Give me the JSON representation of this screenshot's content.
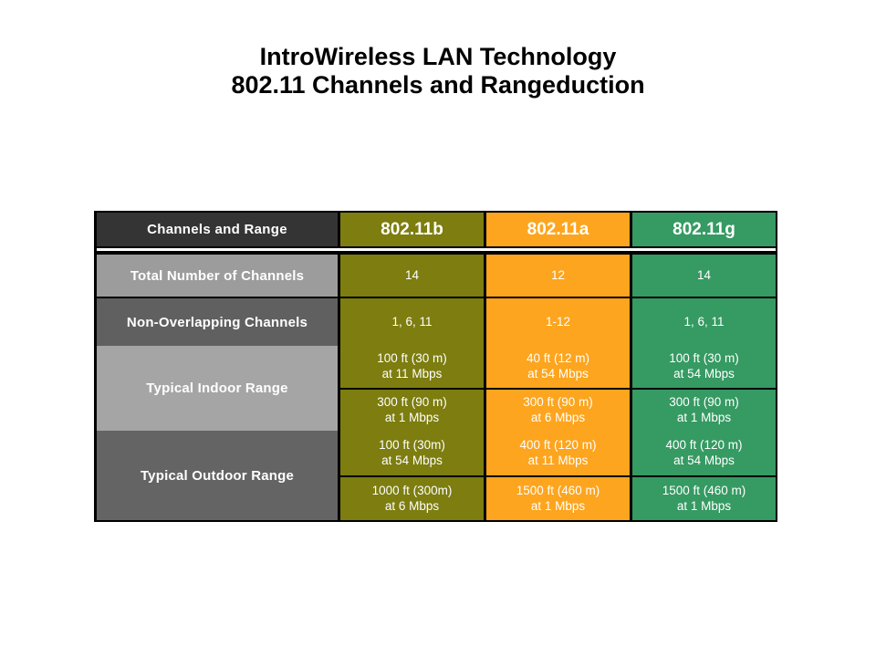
{
  "slide": {
    "title_line1": "IntroWireless LAN Technology",
    "title_line2": "802.11 Channels and Rangeduction"
  },
  "table": {
    "corner_header": "Channels and Range",
    "column_headers": [
      "802.11b",
      "802.11a",
      "802.11g"
    ],
    "row_labels": [
      "Total Number of Channels",
      "Non-Overlapping Channels",
      "Typical Indoor Range",
      "Typical Outdoor Range"
    ],
    "cells": {
      "b": [
        "14",
        "1, 6, 11",
        "100 ft (30 m)\nat 11 Mbps",
        "300 ft (90 m)\nat 1 Mbps",
        "100 ft (30m)\nat 54 Mbps",
        "1000 ft (300m)\nat 6 Mbps"
      ],
      "a": [
        "12",
        "1-12",
        "40 ft (12 m)\nat 54 Mbps",
        "300 ft (90 m)\nat 6 Mbps",
        "400 ft (120 m)\nat 11 Mbps",
        "1500 ft (460 m)\nat 1 Mbps"
      ],
      "g": [
        "14",
        "1, 6, 11",
        "100 ft (30 m)\nat 54 Mbps",
        "300 ft (90 m)\nat 1 Mbps",
        "400 ft (120 m)\nat 54 Mbps",
        "1500 ft (460 m)\nat 1 Mbps"
      ]
    }
  },
  "colors": {
    "column_802_11b": "#7d7d10",
    "column_802_11a": "#fda51e",
    "column_802_11g": "#369a63",
    "corner_header_bg": "#343434",
    "row_total_bg": "#9c9c9c",
    "row_non_overlapping_bg": "#606060",
    "row_indoor_bg": "#a5a5a5",
    "row_outdoor_bg": "#646464",
    "border": "#000000",
    "cell_text": "#ffffff",
    "title_text": "#000000"
  }
}
